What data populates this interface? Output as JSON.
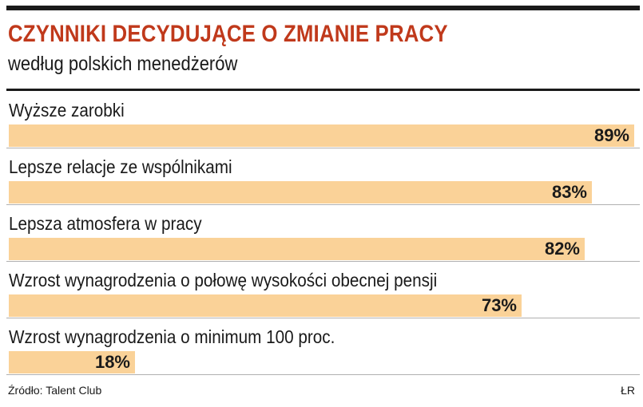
{
  "header": {
    "title": "CZYNNIKI DECYDUJĄCE O ZMIANIE PRACY",
    "subtitle": "według polskich menedżerów"
  },
  "footer": {
    "source": "Źródło: Talent Club",
    "credit": "ŁR"
  },
  "colors": {
    "title": "#c0391b",
    "bar": "#fad298",
    "text": "#1a1a1a"
  },
  "chart_data": {
    "type": "bar",
    "orientation": "horizontal",
    "title": "CZYNNIKI DECYDUJĄCE O ZMIANIE PRACY",
    "subtitle": "według polskich menedżerów",
    "categories": [
      "Wyższe zarobki",
      "Lepsze relacje ze wspólnikami",
      "Lepsza atmosfera w pracy",
      "Wzrost wynagrodzenia o połowę wysokości obecnej pensji",
      "Wzrost wynagrodzenia o minimum 100 proc."
    ],
    "values": [
      89,
      83,
      82,
      73,
      18
    ],
    "value_labels": [
      "89%",
      "83%",
      "82%",
      "73%",
      "18%"
    ],
    "unit": "%",
    "xlim": [
      0,
      90
    ],
    "grid": false,
    "legend": "none"
  }
}
